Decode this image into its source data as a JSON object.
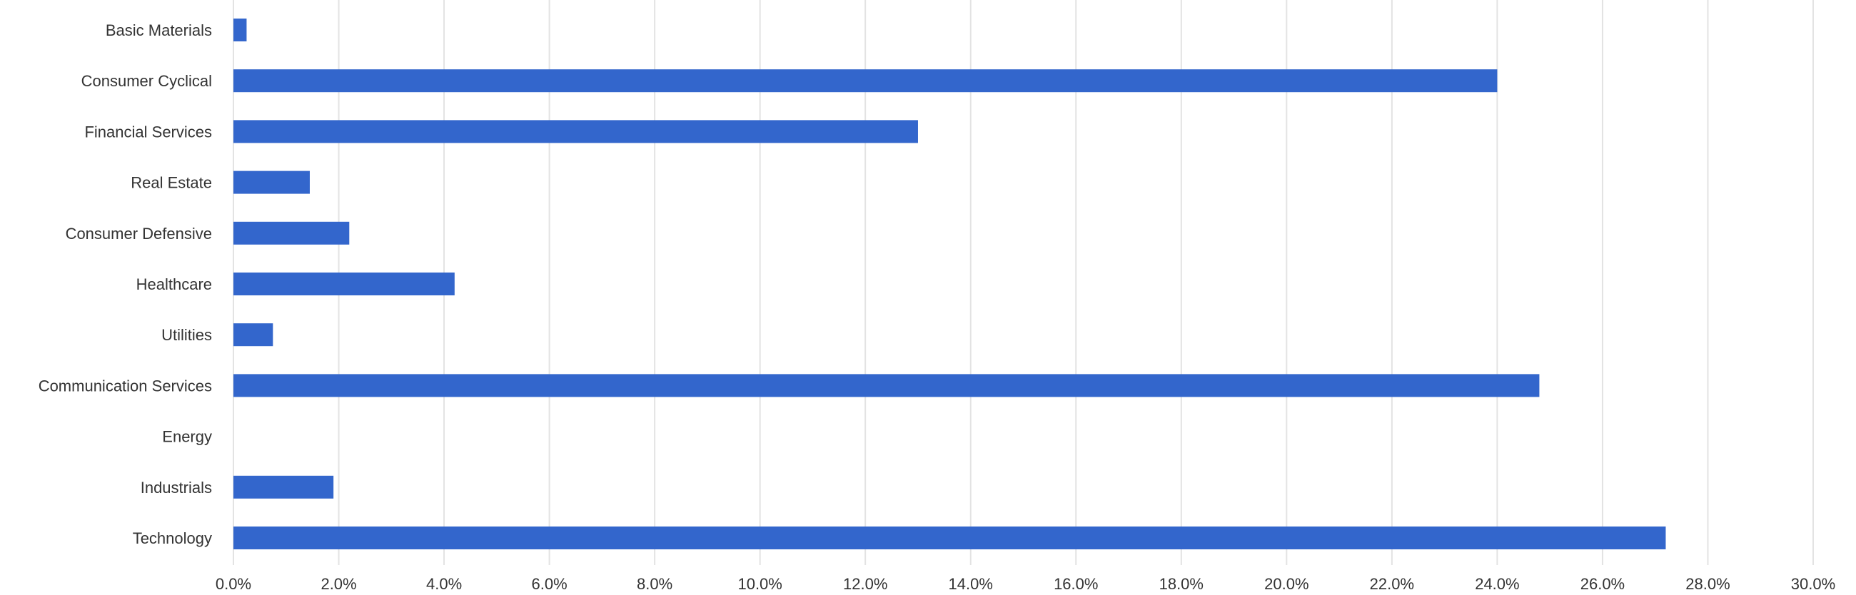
{
  "chart_data": {
    "type": "bar",
    "orientation": "horizontal",
    "categories": [
      "Basic Materials",
      "Consumer Cyclical",
      "Financial Services",
      "Real Estate",
      "Consumer Defensive",
      "Healthcare",
      "Utilities",
      "Communication Services",
      "Energy",
      "Industrials",
      "Technology"
    ],
    "values": [
      0.25,
      24.0,
      13.0,
      1.45,
      2.2,
      4.2,
      0.75,
      24.8,
      0.0,
      1.9,
      27.2
    ],
    "title": "",
    "xlabel": "",
    "ylabel": "",
    "xlim": [
      0,
      30
    ],
    "xticks": [
      0,
      2,
      4,
      6,
      8,
      10,
      12,
      14,
      16,
      18,
      20,
      22,
      24,
      26,
      28,
      30
    ],
    "xtick_labels": [
      "0.0%",
      "2.0%",
      "4.0%",
      "6.0%",
      "8.0%",
      "10.0%",
      "12.0%",
      "14.0%",
      "16.0%",
      "18.0%",
      "20.0%",
      "22.0%",
      "24.0%",
      "26.0%",
      "28.0%",
      "30.0%"
    ],
    "grid": true,
    "legend": "none",
    "bar_color": "#3366cc"
  }
}
